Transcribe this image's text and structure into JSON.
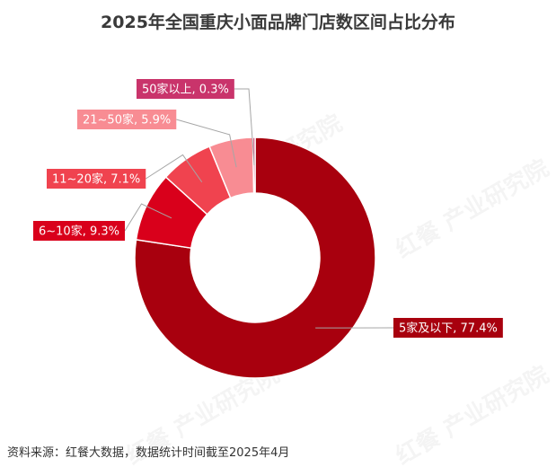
{
  "title": "2025年全国重庆小面品牌门店数区间占比分布",
  "source": "资料来源：红餐大数据，数据统计时间截至2025年4月",
  "watermark": "红餐 产业研究院",
  "chart_data": {
    "type": "pie",
    "variant": "donut",
    "title": "2025年全国重庆小面品牌门店数区间占比分布",
    "slices": [
      {
        "label": "5家及以下",
        "value": 77.4,
        "display": "5家及以下, 77.4%",
        "color": "#A8000E"
      },
      {
        "label": "6~10家",
        "value": 9.3,
        "display": "6~10家, 9.3%",
        "color": "#D9001B"
      },
      {
        "label": "11~20家",
        "value": 7.1,
        "display": "11~20家, 7.1%",
        "color": "#F0434F"
      },
      {
        "label": "21~50家",
        "value": 5.9,
        "display": "21~50家, 5.9%",
        "color": "#F88C93"
      },
      {
        "label": "50家以上",
        "value": 0.3,
        "display": "50家以上, 0.3%",
        "color": "#C9346B"
      }
    ]
  }
}
